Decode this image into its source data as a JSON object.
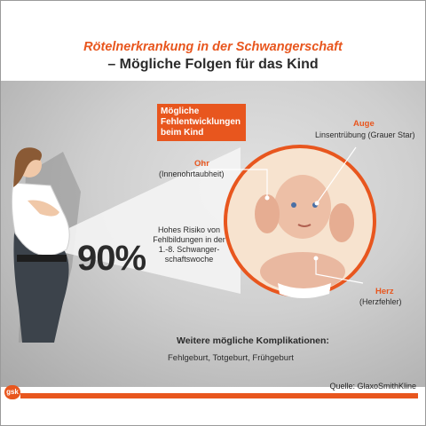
{
  "header": {
    "title_line1": "Rötelnerkrankung in der Schwangerschaft",
    "title_line2": "– Mögliche Folgen für das Kind"
  },
  "risk": {
    "percent": "90%",
    "description": "Hohes Risiko von Fehlbildungen in der 1.-8. Schwanger-schaftswoche"
  },
  "malformations_box": {
    "label": "Mögliche Fehlentwicklungen beim Kind"
  },
  "labels": {
    "ear_title": "Ohr",
    "ear_sub": "(Innenohrtaubheit)",
    "eye_title": "Auge",
    "eye_sub": "Linsentrübung (Grauer Star)",
    "heart_title": "Herz",
    "heart_sub": "(Herzfehler)"
  },
  "complications": {
    "title": "Weitere mögliche Komplikationen:",
    "text": "Fehlgeburt, Totgeburt, Frühgeburt"
  },
  "footer": {
    "source": "Quelle: GlaxoSmithKline",
    "logo_text": "gsk"
  },
  "colors": {
    "accent": "#e8561e",
    "text": "#2b2b2b",
    "panel": "#c8c8c8"
  }
}
